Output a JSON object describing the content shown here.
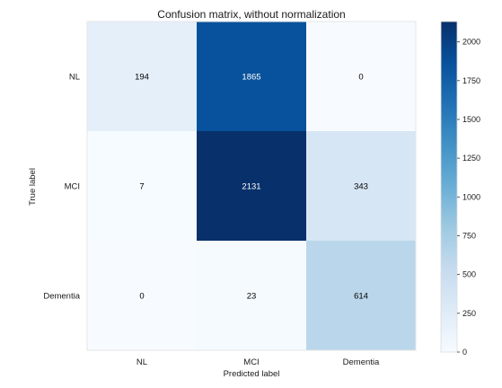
{
  "chart_data": {
    "type": "heatmap",
    "title": "Confusion matrix, without normalization",
    "xlabel": "Predicted label",
    "ylabel": "True label",
    "x_categories": [
      "NL",
      "MCI",
      "Dementia"
    ],
    "y_categories": [
      "NL",
      "MCI",
      "Dementia"
    ],
    "matrix": [
      [
        194,
        1865,
        0
      ],
      [
        7,
        2131,
        343
      ],
      [
        0,
        23,
        614
      ]
    ],
    "colormap": "Blues",
    "color_range": [
      0,
      2131
    ],
    "colorbar_ticks": [
      0,
      250,
      500,
      750,
      1000,
      1250,
      1500,
      1750,
      2000
    ],
    "grid": false,
    "text_color_dark": "#000000",
    "text_color_light": "#ffffff"
  }
}
